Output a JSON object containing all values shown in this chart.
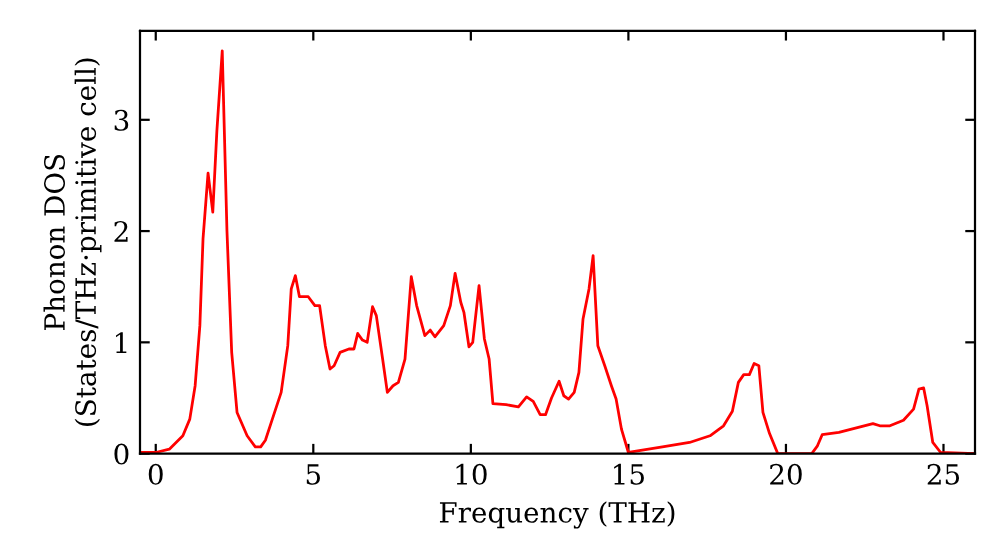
{
  "chart_data": {
    "type": "line",
    "xlabel": "Frequency (THz)",
    "ylabel": "Phonon DOS\n(States/THz·primitive cell)",
    "xlim": [
      -0.5,
      26
    ],
    "ylim": [
      0,
      3.8
    ],
    "xticks": [
      0,
      5,
      10,
      15,
      20,
      25
    ],
    "yticks": [
      0,
      1,
      2,
      3
    ],
    "grid": false,
    "line_style": "solid",
    "marker": "none",
    "series": [
      {
        "color": "#ff0000",
        "x": [
          -0.5,
          0,
          0.43,
          0.86,
          1.08,
          1.25,
          1.4,
          1.5,
          1.66,
          1.81,
          1.94,
          2.11,
          2.26,
          2.41,
          2.58,
          2.9,
          3.16,
          3.33,
          3.48,
          3.7,
          3.98,
          4.19,
          4.3,
          4.43,
          4.56,
          4.84,
          5.05,
          5.2,
          5.38,
          5.53,
          5.66,
          5.85,
          6.13,
          6.29,
          6.41,
          6.56,
          6.71,
          6.88,
          7.0,
          7.2,
          7.35,
          7.53,
          7.7,
          7.91,
          8.11,
          8.28,
          8.54,
          8.71,
          8.86,
          9.14,
          9.35,
          9.5,
          9.68,
          9.78,
          9.94,
          10.06,
          10.26,
          10.43,
          10.58,
          10.7,
          11.12,
          11.51,
          11.77,
          11.98,
          12.2,
          12.37,
          12.56,
          12.8,
          12.95,
          13.1,
          13.28,
          13.43,
          13.56,
          13.75,
          13.88,
          14.03,
          14.25,
          14.46,
          14.61,
          14.78,
          15.0,
          16.08,
          16.94,
          17.59,
          18.02,
          18.3,
          18.49,
          18.66,
          18.84,
          18.99,
          19.14,
          19.27,
          19.48,
          19.74,
          20.82,
          21.0,
          21.15,
          21.68,
          22.76,
          22.98,
          23.3,
          23.73,
          24.05,
          24.22,
          24.37,
          24.48,
          24.66,
          24.91,
          26
        ],
        "values": [
          0.01,
          0.01,
          0.04,
          0.16,
          0.31,
          0.61,
          1.15,
          1.93,
          2.52,
          2.17,
          2.9,
          3.62,
          2.0,
          0.91,
          0.37,
          0.16,
          0.06,
          0.06,
          0.12,
          0.31,
          0.55,
          0.97,
          1.48,
          1.6,
          1.41,
          1.41,
          1.33,
          1.33,
          0.97,
          0.76,
          0.79,
          0.91,
          0.94,
          0.94,
          1.08,
          1.02,
          1.0,
          1.32,
          1.24,
          0.85,
          0.55,
          0.61,
          0.64,
          0.85,
          1.59,
          1.33,
          1.06,
          1.11,
          1.05,
          1.15,
          1.33,
          1.62,
          1.36,
          1.27,
          0.96,
          1.0,
          1.51,
          1.03,
          0.85,
          0.45,
          0.44,
          0.42,
          0.51,
          0.47,
          0.35,
          0.35,
          0.5,
          0.65,
          0.52,
          0.49,
          0.55,
          0.73,
          1.21,
          1.48,
          1.78,
          0.97,
          0.79,
          0.61,
          0.49,
          0.22,
          0.01,
          0.06,
          0.1,
          0.16,
          0.25,
          0.38,
          0.64,
          0.71,
          0.71,
          0.81,
          0.79,
          0.37,
          0.18,
          0,
          0,
          0.07,
          0.17,
          0.19,
          0.27,
          0.25,
          0.25,
          0.3,
          0.4,
          0.58,
          0.59,
          0.43,
          0.1,
          0.01,
          0
        ]
      }
    ]
  }
}
